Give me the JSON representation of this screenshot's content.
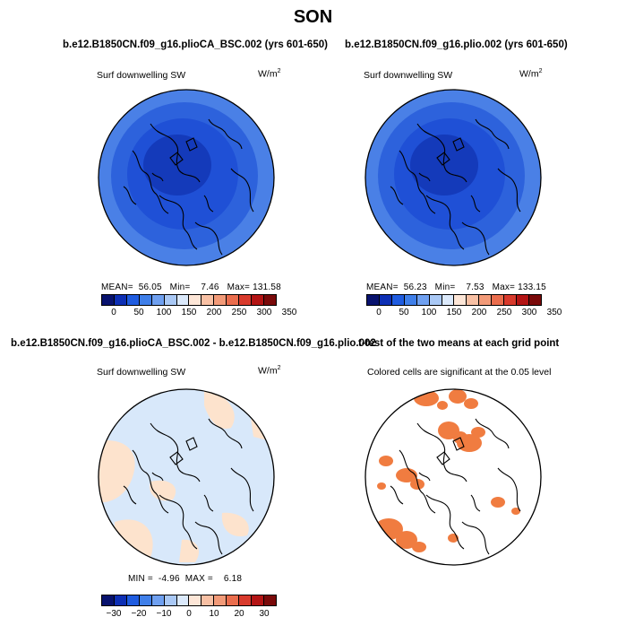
{
  "figure": {
    "title": "SON"
  },
  "panels": {
    "top_left": {
      "title": "b.e12.B1850CN.f09_g16.plioCA_BSC.002 (yrs 601-650)",
      "subtitle": "Surf downwelling SW",
      "units_base": "W/m",
      "units_exp": "2",
      "stats_mean_label": "MEAN=",
      "stats_mean": "56.05",
      "stats_min_label": "Min=",
      "stats_min": "7.46",
      "stats_max_label": "Max=",
      "stats_max": "131.58"
    },
    "top_right": {
      "title": "b.e12.B1850CN.f09_g16.plio.002 (yrs 601-650)",
      "subtitle": "Surf downwelling SW",
      "units_base": "W/m",
      "units_exp": "2",
      "stats_mean_label": "MEAN=",
      "stats_mean": "56.23",
      "stats_min_label": "Min=",
      "stats_min": "7.53",
      "stats_max_label": "Max=",
      "stats_max": "133.15"
    },
    "bottom_left": {
      "title": "b.e12.B1850CN.f09_g16.plioCA_BSC.002 - b.e12.B1850CN.f09_g16.plio.002",
      "subtitle": "Surf downwelling SW",
      "units_base": "W/m",
      "units_exp": "2",
      "stats_min_label": "MIN =",
      "stats_min": "-4.96",
      "stats_max_label": "MAX =",
      "stats_max": "6.18"
    },
    "bottom_right": {
      "title": "t-test of the two means at each grid point",
      "subtitle": "Colored cells are significant at the 0.05 level"
    }
  },
  "colorbars": {
    "absolute": {
      "colors": [
        "#08126e",
        "#0d2fb4",
        "#1f5ce0",
        "#3f7fe9",
        "#6fa0f0",
        "#a9c8f5",
        "#dbe9fb",
        "#fde6d7",
        "#f8c0a4",
        "#f29a78",
        "#ea6d4d",
        "#d83a2c",
        "#b31414",
        "#7a0a0a"
      ],
      "tick_labels": [
        "0",
        "50",
        "100",
        "150",
        "200",
        "250",
        "300",
        "350"
      ]
    },
    "difference": {
      "colors": [
        "#08126e",
        "#0d2fb4",
        "#1f5ce0",
        "#3f7fe9",
        "#6fa0f0",
        "#a9c8f5",
        "#dbe9fb",
        "#fde6d7",
        "#f8c0a4",
        "#f29a78",
        "#ea6d4d",
        "#d83a2c",
        "#b31414",
        "#7a0a0a"
      ],
      "tick_labels": [
        "−30",
        "−20",
        "−10",
        "0",
        "10",
        "20",
        "30"
      ]
    }
  },
  "colors": {
    "shell_outer": "#4a80e6",
    "shell_mid": "#2d62dc",
    "shell_inner": "#1f50d6",
    "shell_core": "#143aba",
    "diff_blue": "#d8e8fa",
    "diff_red": "#fde3cd",
    "signif": "#f07c40",
    "coast": "#000000"
  }
}
